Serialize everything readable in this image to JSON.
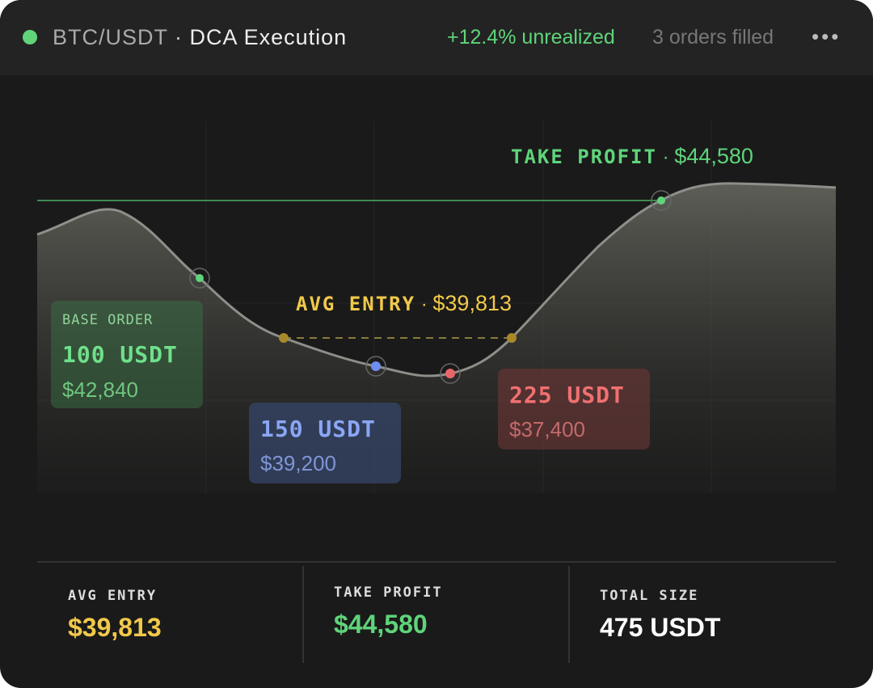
{
  "header": {
    "pair": "BTC/USDT",
    "separator": "·",
    "title": "DCA Execution",
    "pnl": "+12.4% unrealized",
    "status": "3 orders filled"
  },
  "chart": {
    "take_profit": {
      "label": "TAKE PROFIT",
      "price": "$44,580"
    },
    "avg_entry": {
      "label": "AVG ENTRY",
      "price": "$39,813"
    },
    "orders": [
      {
        "tag": "BASE ORDER",
        "size": "100 USDT",
        "price": "$42,840"
      },
      {
        "size": "150 USDT",
        "price": "$39,200"
      },
      {
        "size": "225 USDT",
        "price": "$37,400"
      }
    ]
  },
  "stats": [
    {
      "label": "AVG ENTRY",
      "value": "$39,813"
    },
    {
      "label": "TAKE PROFIT",
      "value": "$44,580"
    },
    {
      "label": "TOTAL SIZE",
      "value": "475 USDT"
    }
  ]
}
